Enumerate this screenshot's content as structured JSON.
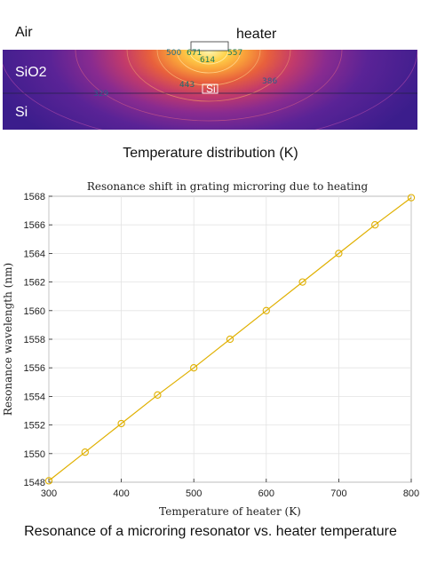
{
  "heatmap": {
    "layers": {
      "air": "Air",
      "sio2": "SiO2",
      "si": "Si"
    },
    "heater_label": "heater",
    "waveguide_label": "Si",
    "contour_labels": [
      "500",
      "671",
      "614",
      "557",
      "443",
      "329",
      "386"
    ]
  },
  "captions": {
    "temperature": "Temperature distribution (K)",
    "resonance": "Resonance of a microring resonator vs. heater temperature"
  },
  "chart_data": {
    "type": "line",
    "title": "Resonance shift in grating microring due to heating",
    "xlabel": "Temperature of heater (K)",
    "ylabel": "Resonance wavelength (nm)",
    "xlim": [
      300,
      800
    ],
    "ylim": [
      1548,
      1568
    ],
    "xticks": [
      300,
      400,
      500,
      600,
      700,
      800
    ],
    "yticks": [
      1548,
      1550,
      1552,
      1554,
      1556,
      1558,
      1560,
      1562,
      1564,
      1566,
      1568
    ],
    "grid": true,
    "series": [
      {
        "color": "#e0b000",
        "marker": "circle",
        "x": [
          300,
          350,
          400,
          450,
          500,
          550,
          600,
          650,
          700,
          750,
          800
        ],
        "y": [
          1548.1,
          1550.1,
          1552.1,
          1554.1,
          1556.0,
          1558.0,
          1560.0,
          1562.0,
          1564.0,
          1566.0,
          1567.9
        ]
      }
    ]
  }
}
